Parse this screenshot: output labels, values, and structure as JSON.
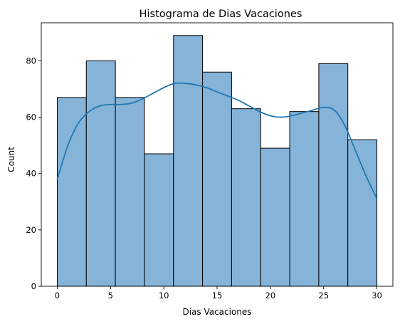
{
  "chart_data": {
    "type": "bar",
    "title": "Histograma de Dias Vacaciones",
    "xlabel": "Dias Vacaciones",
    "ylabel": "Count",
    "bin_edges": [
      0,
      2.727,
      5.455,
      8.182,
      10.909,
      13.636,
      16.364,
      19.091,
      21.818,
      24.545,
      27.273,
      30
    ],
    "values": [
      67,
      80,
      67,
      47,
      89,
      76,
      63,
      49,
      62,
      79,
      52
    ],
    "kde": {
      "x": [
        0,
        1,
        2,
        3,
        4,
        5,
        6,
        7,
        8,
        9,
        10,
        11,
        12,
        13,
        14,
        15,
        16,
        17,
        18,
        19,
        20,
        21,
        22,
        23,
        24,
        25,
        26,
        27,
        28,
        29,
        30
      ],
      "y": [
        38,
        50,
        58,
        62,
        64,
        64.5,
        64.5,
        65,
        66.5,
        68.5,
        70.5,
        72,
        72,
        71.5,
        70.5,
        69,
        67.5,
        66,
        64,
        62,
        60.5,
        60,
        60.5,
        61.5,
        62.5,
        63.5,
        62.5,
        57,
        48,
        39,
        31
      ]
    },
    "xlim": [
      -1.5,
      31.5
    ],
    "ylim": [
      0,
      93.5
    ],
    "xticks": [
      0,
      5,
      10,
      15,
      20,
      25,
      30
    ],
    "yticks": [
      0,
      20,
      40,
      60,
      80
    ],
    "grid": false,
    "series": [
      {
        "color": "#86b4d9"
      },
      {
        "color": "#1f77b4"
      }
    ]
  }
}
